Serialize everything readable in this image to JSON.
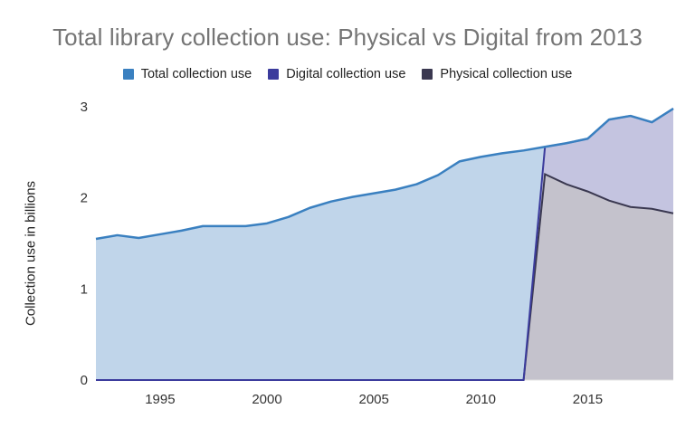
{
  "chart_data": {
    "type": "area",
    "title": "Total library collection use: Physical vs Digital from 2013",
    "xlabel": "",
    "ylabel": "Collection use in billions",
    "ylim": [
      0,
      3
    ],
    "xlim": [
      1992,
      2019
    ],
    "yticks": [
      0,
      1,
      2,
      3
    ],
    "xticks": [
      1995,
      2000,
      2005,
      2010,
      2015
    ],
    "grid": false,
    "legend_position": "top",
    "x": [
      1992,
      1993,
      1994,
      1995,
      1996,
      1997,
      1998,
      1999,
      2000,
      2001,
      2002,
      2003,
      2004,
      2005,
      2006,
      2007,
      2008,
      2009,
      2010,
      2011,
      2012,
      2013,
      2014,
      2015,
      2016,
      2017,
      2018,
      2019
    ],
    "series": [
      {
        "name": "Total collection use",
        "color": "#3a80c0",
        "fill": "#c0d5ea",
        "values": [
          1.55,
          1.59,
          1.56,
          1.6,
          1.64,
          1.69,
          1.69,
          1.69,
          1.72,
          1.79,
          1.89,
          1.96,
          2.01,
          2.05,
          2.09,
          2.15,
          2.25,
          2.4,
          2.45,
          2.49,
          2.52,
          2.56,
          2.6,
          2.65,
          2.86,
          2.9,
          2.83,
          2.98
        ]
      },
      {
        "name": "Digital collection use",
        "color": "#3b3b9c",
        "fill": "#c4c4e0",
        "stacked_on": "Physical collection use",
        "values": [
          0,
          0,
          0,
          0,
          0,
          0,
          0,
          0,
          0,
          0,
          0,
          0,
          0,
          0,
          0,
          0,
          0,
          0,
          0,
          0,
          0,
          0.3,
          0.45,
          0.58,
          0.89,
          1.0,
          0.95,
          1.15
        ]
      },
      {
        "name": "Physical collection use",
        "color": "#3a3850",
        "fill": "#c4c2cc",
        "values": [
          0,
          0,
          0,
          0,
          0,
          0,
          0,
          0,
          0,
          0,
          0,
          0,
          0,
          0,
          0,
          0,
          0,
          0,
          0,
          0,
          0,
          2.26,
          2.15,
          2.07,
          1.97,
          1.9,
          1.88,
          1.83
        ]
      }
    ]
  },
  "legend": [
    {
      "label": "Total collection use",
      "color": "#3a80c0"
    },
    {
      "label": "Digital collection use",
      "color": "#3b3b9c"
    },
    {
      "label": "Physical collection use",
      "color": "#3a3850"
    }
  ]
}
